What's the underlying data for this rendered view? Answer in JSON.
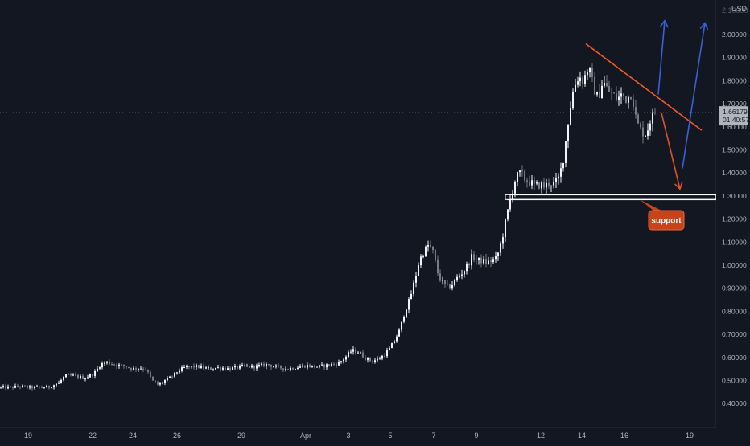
{
  "chart_data": {
    "type": "candlestick",
    "currency": "USD",
    "price_axis": {
      "range": [
        0.4,
        2.1
      ],
      "ticks": [
        "2.00000",
        "1.90000",
        "1.80000",
        "1.70000",
        "1.60000",
        "1.50000",
        "1.40000",
        "1.30000",
        "1.20000",
        "1.10000",
        "1.00000",
        "0.90000",
        "0.80000",
        "0.70000",
        "0.60000",
        "0.50000",
        "0.40000"
      ],
      "top_partial_label": "2.10000"
    },
    "time_axis": {
      "labels": [
        "19",
        "22",
        "24",
        "26",
        "29",
        "Apr",
        "3",
        "5",
        "7",
        "9",
        "12",
        "14",
        "16",
        "19"
      ]
    },
    "current_price": {
      "value": 1.66179,
      "label": "1.66179",
      "countdown": "01:40:57"
    },
    "support_label": "support",
    "support_level": 1.295,
    "price_path": [
      [
        0,
        0.47
      ],
      [
        12,
        0.47
      ],
      [
        24,
        0.475
      ],
      [
        36,
        0.47
      ],
      [
        48,
        0.47
      ],
      [
        60,
        0.472
      ],
      [
        72,
        0.49
      ],
      [
        80,
        0.52
      ],
      [
        92,
        0.52
      ],
      [
        104,
        0.51
      ],
      [
        116,
        0.53
      ],
      [
        124,
        0.57
      ],
      [
        132,
        0.58
      ],
      [
        140,
        0.57
      ],
      [
        148,
        0.565
      ],
      [
        156,
        0.56
      ],
      [
        164,
        0.55
      ],
      [
        172,
        0.555
      ],
      [
        180,
        0.55
      ],
      [
        188,
        0.5
      ],
      [
        196,
        0.48
      ],
      [
        204,
        0.5
      ],
      [
        212,
        0.515
      ],
      [
        220,
        0.54
      ],
      [
        228,
        0.555
      ],
      [
        236,
        0.56
      ],
      [
        244,
        0.56
      ],
      [
        252,
        0.555
      ],
      [
        260,
        0.55
      ],
      [
        268,
        0.555
      ],
      [
        276,
        0.555
      ],
      [
        284,
        0.55
      ],
      [
        292,
        0.555
      ],
      [
        300,
        0.56
      ],
      [
        308,
        0.56
      ],
      [
        316,
        0.56
      ],
      [
        324,
        0.565
      ],
      [
        332,
        0.57
      ],
      [
        340,
        0.56
      ],
      [
        348,
        0.555
      ],
      [
        356,
        0.55
      ],
      [
        364,
        0.555
      ],
      [
        372,
        0.56
      ],
      [
        380,
        0.565
      ],
      [
        388,
        0.56
      ],
      [
        396,
        0.56
      ],
      [
        404,
        0.565
      ],
      [
        412,
        0.57
      ],
      [
        420,
        0.575
      ],
      [
        428,
        0.6
      ],
      [
        436,
        0.63
      ],
      [
        444,
        0.625
      ],
      [
        452,
        0.6
      ],
      [
        460,
        0.585
      ],
      [
        468,
        0.59
      ],
      [
        476,
        0.61
      ],
      [
        484,
        0.64
      ],
      [
        490,
        0.68
      ],
      [
        496,
        0.72
      ],
      [
        502,
        0.8
      ],
      [
        508,
        0.85
      ],
      [
        514,
        0.93
      ],
      [
        520,
        1.02
      ],
      [
        526,
        1.06
      ],
      [
        532,
        1.09
      ],
      [
        538,
        1.05
      ],
      [
        544,
        0.95
      ],
      [
        550,
        0.92
      ],
      [
        556,
        0.9
      ],
      [
        562,
        0.92
      ],
      [
        568,
        0.95
      ],
      [
        574,
        0.97
      ],
      [
        580,
        1.0
      ],
      [
        586,
        1.04
      ],
      [
        592,
        1.02
      ],
      [
        598,
        1.02
      ],
      [
        604,
        1.01
      ],
      [
        610,
        1.02
      ],
      [
        616,
        1.03
      ],
      [
        622,
        1.1
      ],
      [
        628,
        1.2
      ],
      [
        634,
        1.3
      ],
      [
        640,
        1.38
      ],
      [
        646,
        1.4
      ],
      [
        652,
        1.37
      ],
      [
        658,
        1.36
      ],
      [
        664,
        1.34
      ],
      [
        670,
        1.35
      ],
      [
        676,
        1.34
      ],
      [
        682,
        1.36
      ],
      [
        688,
        1.35
      ],
      [
        694,
        1.38
      ],
      [
        700,
        1.48
      ],
      [
        706,
        1.65
      ],
      [
        712,
        1.77
      ],
      [
        718,
        1.82
      ],
      [
        724,
        1.8
      ],
      [
        730,
        1.86
      ],
      [
        736,
        1.78
      ],
      [
        742,
        1.72
      ],
      [
        748,
        1.8
      ],
      [
        754,
        1.76
      ],
      [
        760,
        1.74
      ],
      [
        766,
        1.72
      ],
      [
        772,
        1.74
      ],
      [
        778,
        1.72
      ],
      [
        784,
        1.75
      ],
      [
        790,
        1.62
      ],
      [
        796,
        1.58
      ],
      [
        802,
        1.57
      ],
      [
        808,
        1.64
      ],
      [
        814,
        1.66
      ]
    ],
    "annotations": {
      "resistance_trendline": {
        "from": [
          728,
          1.96
        ],
        "to": [
          872,
          1.585
        ]
      },
      "bearish_arrow": {
        "from": [
          822,
          1.66
        ],
        "to": [
          845,
          1.33
        ]
      },
      "bullish_arrows": [
        {
          "from": [
            818,
            1.74
          ],
          "to": [
            826,
            2.06
          ]
        },
        {
          "from": [
            848,
            1.42
          ],
          "to": [
            876,
            2.05
          ]
        }
      ]
    },
    "colors": {
      "background": "#131722",
      "candle_up": "#f0f3fa",
      "candle_down": "#787b86",
      "trendline": "#f05a28",
      "bearish_arrow": "#e0532a",
      "bullish_arrow": "#3d5fd6",
      "support_box": "#ffffff",
      "support_label_bg": "#c7431c",
      "price_tag_bg": "#b2b5be",
      "axis_text": "#b2b5be"
    }
  }
}
